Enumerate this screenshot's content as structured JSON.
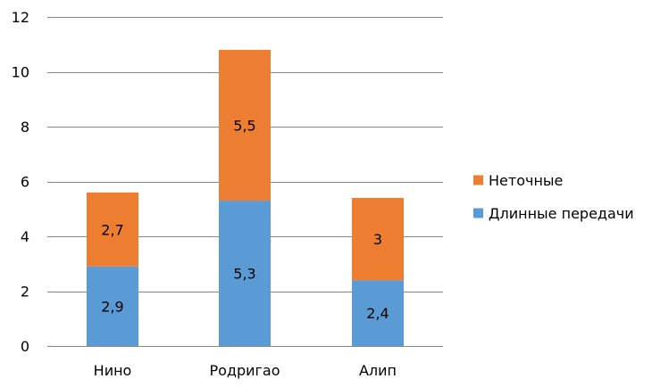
{
  "chart_data": {
    "type": "bar",
    "stacked": true,
    "title": "",
    "xlabel": "",
    "ylabel": "",
    "categories": [
      "Нино",
      "Родригао",
      "Алип"
    ],
    "series": [
      {
        "name": "Длинные передачи",
        "values": [
          2.9,
          5.3,
          2.4
        ],
        "labels": [
          "2,9",
          "5,3",
          "2,4"
        ],
        "color": "#5b9bd5"
      },
      {
        "name": "Неточные",
        "values": [
          2.7,
          5.5,
          3
        ],
        "labels": [
          "2,7",
          "5,5",
          "3"
        ],
        "color": "#ed7d31"
      }
    ],
    "ylim": [
      0,
      12
    ],
    "yticks": [
      0,
      2,
      4,
      6,
      8,
      10,
      12
    ],
    "ytick_labels": [
      "0",
      "2",
      "4",
      "6",
      "8",
      "10",
      "12"
    ],
    "grid": true,
    "gridline_color": "#868686",
    "legend_position": "right",
    "legend_order": [
      "Неточные",
      "Длинные передачи"
    ]
  }
}
